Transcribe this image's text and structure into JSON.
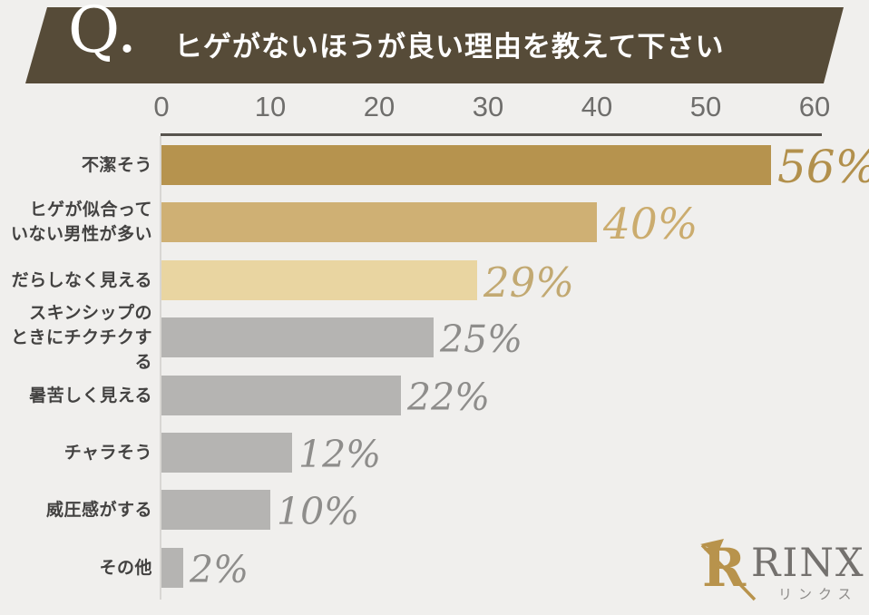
{
  "header": {
    "q_label": "Q.",
    "title": "ヒゲがないほうが良い理由を教えて下さい"
  },
  "chart_data": {
    "type": "bar",
    "orientation": "horizontal",
    "title": "ヒゲがないほうが良い理由を教えて下さい",
    "x_axis": {
      "position": "top",
      "min": 0,
      "max": 60,
      "ticks": [
        "0",
        "10",
        "20",
        "30",
        "40",
        "50",
        "60"
      ],
      "tick_values": [
        0,
        10,
        20,
        30,
        40,
        50,
        60
      ]
    },
    "categories": [
      "不潔そう",
      "ヒゲが似合って\nいない男性が多い",
      "だらしなく見える",
      "スキンシップの\nときにチクチクする",
      "暑苦しく見える",
      "チャラそう",
      "威圧感がする",
      "その他"
    ],
    "values": [
      56,
      40,
      29,
      25,
      22,
      12,
      10,
      2
    ],
    "value_labels": [
      "56%",
      "40%",
      "29%",
      "25%",
      "22%",
      "12%",
      "10%",
      "2%"
    ],
    "bar_colors": [
      "#b6934e",
      "#cfb074",
      "#e9d5a1",
      "#b5b4b2",
      "#b5b4b2",
      "#b5b4b2",
      "#b5b4b2",
      "#b5b4b2"
    ],
    "value_label_colors": [
      "#b2904c",
      "#cbac6e",
      "#c2a972",
      "#8e8d8b",
      "#8e8d8b",
      "#8e8d8b",
      "#8e8d8b",
      "#8e8d8b"
    ],
    "grid": false,
    "legend": false
  },
  "logo": {
    "brand": "RINX",
    "sub": "リンクス"
  },
  "colors": {
    "background": "#f0efed",
    "banner": "#564b38",
    "banner_text": "#ffffff",
    "axis_line": "#57534e",
    "baseline": "#d8d6d3",
    "tick_text": "#6f6e6c",
    "category_text": "#434241",
    "logo_gold": "#b8934c",
    "logo_text": "#74716e"
  }
}
